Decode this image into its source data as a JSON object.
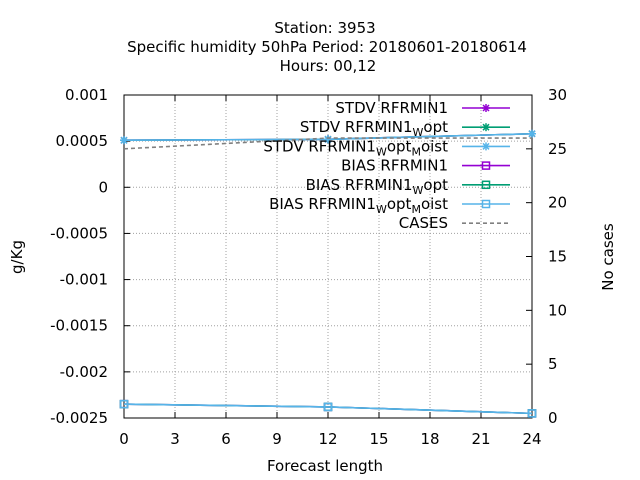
{
  "chart_data": {
    "type": "line",
    "title_lines": [
      "Station:     3953",
      "Specific humidity 50hPa   Period: 20180601-20180614",
      "Hours:  00,12"
    ],
    "xlabel": "Forecast length",
    "ylabel": "g/Kg",
    "y2label": "No cases",
    "x_ticks": [
      "0",
      "3",
      "6",
      "9",
      "12",
      "15",
      "18",
      "21",
      "24"
    ],
    "y_ticks": [
      "0.001",
      "0.0005",
      "0",
      "-0.0005",
      "-0.001",
      "-0.0015",
      "-0.002",
      "-0.0025"
    ],
    "y2_ticks": [
      "30",
      "25",
      "20",
      "15",
      "10",
      "5",
      "0"
    ],
    "xlim": [
      0,
      24
    ],
    "ylim": [
      -0.0025,
      0.001
    ],
    "y2lim": [
      0,
      30
    ],
    "grid": true,
    "legend_position": "top-right",
    "series": [
      {
        "name": "STDV RFRMIN1",
        "sub": "",
        "sub2": "",
        "axis": "y",
        "marker": "star",
        "color": "#9400d3",
        "dash": "",
        "x": [
          0,
          12,
          24
        ],
        "values": [
          0.00051,
          0.00052,
          0.00058
        ]
      },
      {
        "name": "STDV RFRMIN1",
        "sub": "W",
        "mid": "opt",
        "sub2": "",
        "axis": "y",
        "marker": "star",
        "color": "#009e73",
        "dash": "",
        "x": [
          0,
          12,
          24
        ],
        "values": [
          0.00051,
          0.00052,
          0.00058
        ]
      },
      {
        "name": "STDV RFRMIN1",
        "sub": "W",
        "mid": "opt",
        "sub2": "M",
        "tail": "oist",
        "axis": "y",
        "marker": "star",
        "color": "#56b4e9",
        "dash": "",
        "x": [
          0,
          12,
          24
        ],
        "values": [
          0.00051,
          0.00052,
          0.00058
        ]
      },
      {
        "name": "BIAS RFRMIN1",
        "sub": "",
        "sub2": "",
        "axis": "y",
        "marker": "square",
        "color": "#9400d3",
        "dash": "",
        "x": [
          0,
          12,
          24
        ],
        "values": [
          -0.00235,
          -0.00238,
          -0.00245
        ]
      },
      {
        "name": "BIAS RFRMIN1",
        "sub": "W",
        "mid": "opt",
        "sub2": "",
        "axis": "y",
        "marker": "square",
        "color": "#009e73",
        "dash": "",
        "x": [
          0,
          12,
          24
        ],
        "values": [
          -0.00235,
          -0.00238,
          -0.00245
        ]
      },
      {
        "name": "BIAS RFRMIN1",
        "sub": "W",
        "mid": "opt",
        "sub2": "M",
        "tail": "oist",
        "axis": "y",
        "marker": "square",
        "color": "#56b4e9",
        "dash": "",
        "x": [
          0,
          12,
          24
        ],
        "values": [
          -0.00235,
          -0.00238,
          -0.00245
        ]
      },
      {
        "name": "CASES",
        "sub": "",
        "sub2": "",
        "axis": "y2",
        "marker": "none",
        "color": "#808080",
        "dash": "4,3",
        "x": [
          0,
          12,
          24
        ],
        "values": [
          25,
          26,
          26
        ]
      }
    ]
  }
}
